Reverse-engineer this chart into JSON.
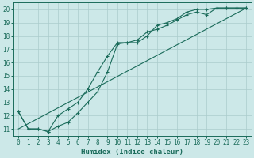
{
  "xlabel": "Humidex (Indice chaleur)",
  "background_color": "#cce8e8",
  "grid_color": "#aacccc",
  "line_color": "#1a6b5a",
  "xlim": [
    -0.5,
    23.5
  ],
  "ylim": [
    10.5,
    20.5
  ],
  "xticks": [
    0,
    1,
    2,
    3,
    4,
    5,
    6,
    7,
    8,
    9,
    10,
    11,
    12,
    13,
    14,
    15,
    16,
    17,
    18,
    19,
    20,
    21,
    22,
    23
  ],
  "yticks": [
    11,
    12,
    13,
    14,
    15,
    16,
    17,
    18,
    19,
    20
  ],
  "line1_x": [
    0,
    1,
    2,
    3,
    4,
    5,
    6,
    7,
    8,
    9,
    10,
    11,
    12,
    13,
    14,
    15,
    16,
    17,
    18,
    19,
    20,
    21,
    22,
    23
  ],
  "line1_y": [
    12.3,
    11.0,
    11.0,
    10.8,
    12.0,
    12.5,
    13.0,
    14.0,
    15.3,
    16.5,
    17.5,
    17.5,
    17.7,
    18.3,
    18.5,
    18.8,
    19.2,
    19.6,
    19.8,
    19.6,
    20.1,
    20.1,
    20.1,
    20.1
  ],
  "line2_x": [
    0,
    1,
    2,
    3,
    4,
    5,
    6,
    7,
    8,
    9,
    10,
    11,
    12,
    13,
    14,
    15,
    16,
    17,
    18,
    19,
    20,
    21,
    22,
    23
  ],
  "line2_y": [
    12.3,
    11.0,
    11.0,
    10.8,
    11.2,
    11.5,
    12.2,
    13.0,
    13.8,
    15.3,
    17.4,
    17.5,
    17.5,
    18.0,
    18.8,
    19.0,
    19.3,
    19.8,
    20.0,
    20.0,
    20.1,
    20.1,
    20.1,
    20.1
  ],
  "line3_x": [
    0,
    23
  ],
  "line3_y": [
    11.0,
    20.1
  ]
}
